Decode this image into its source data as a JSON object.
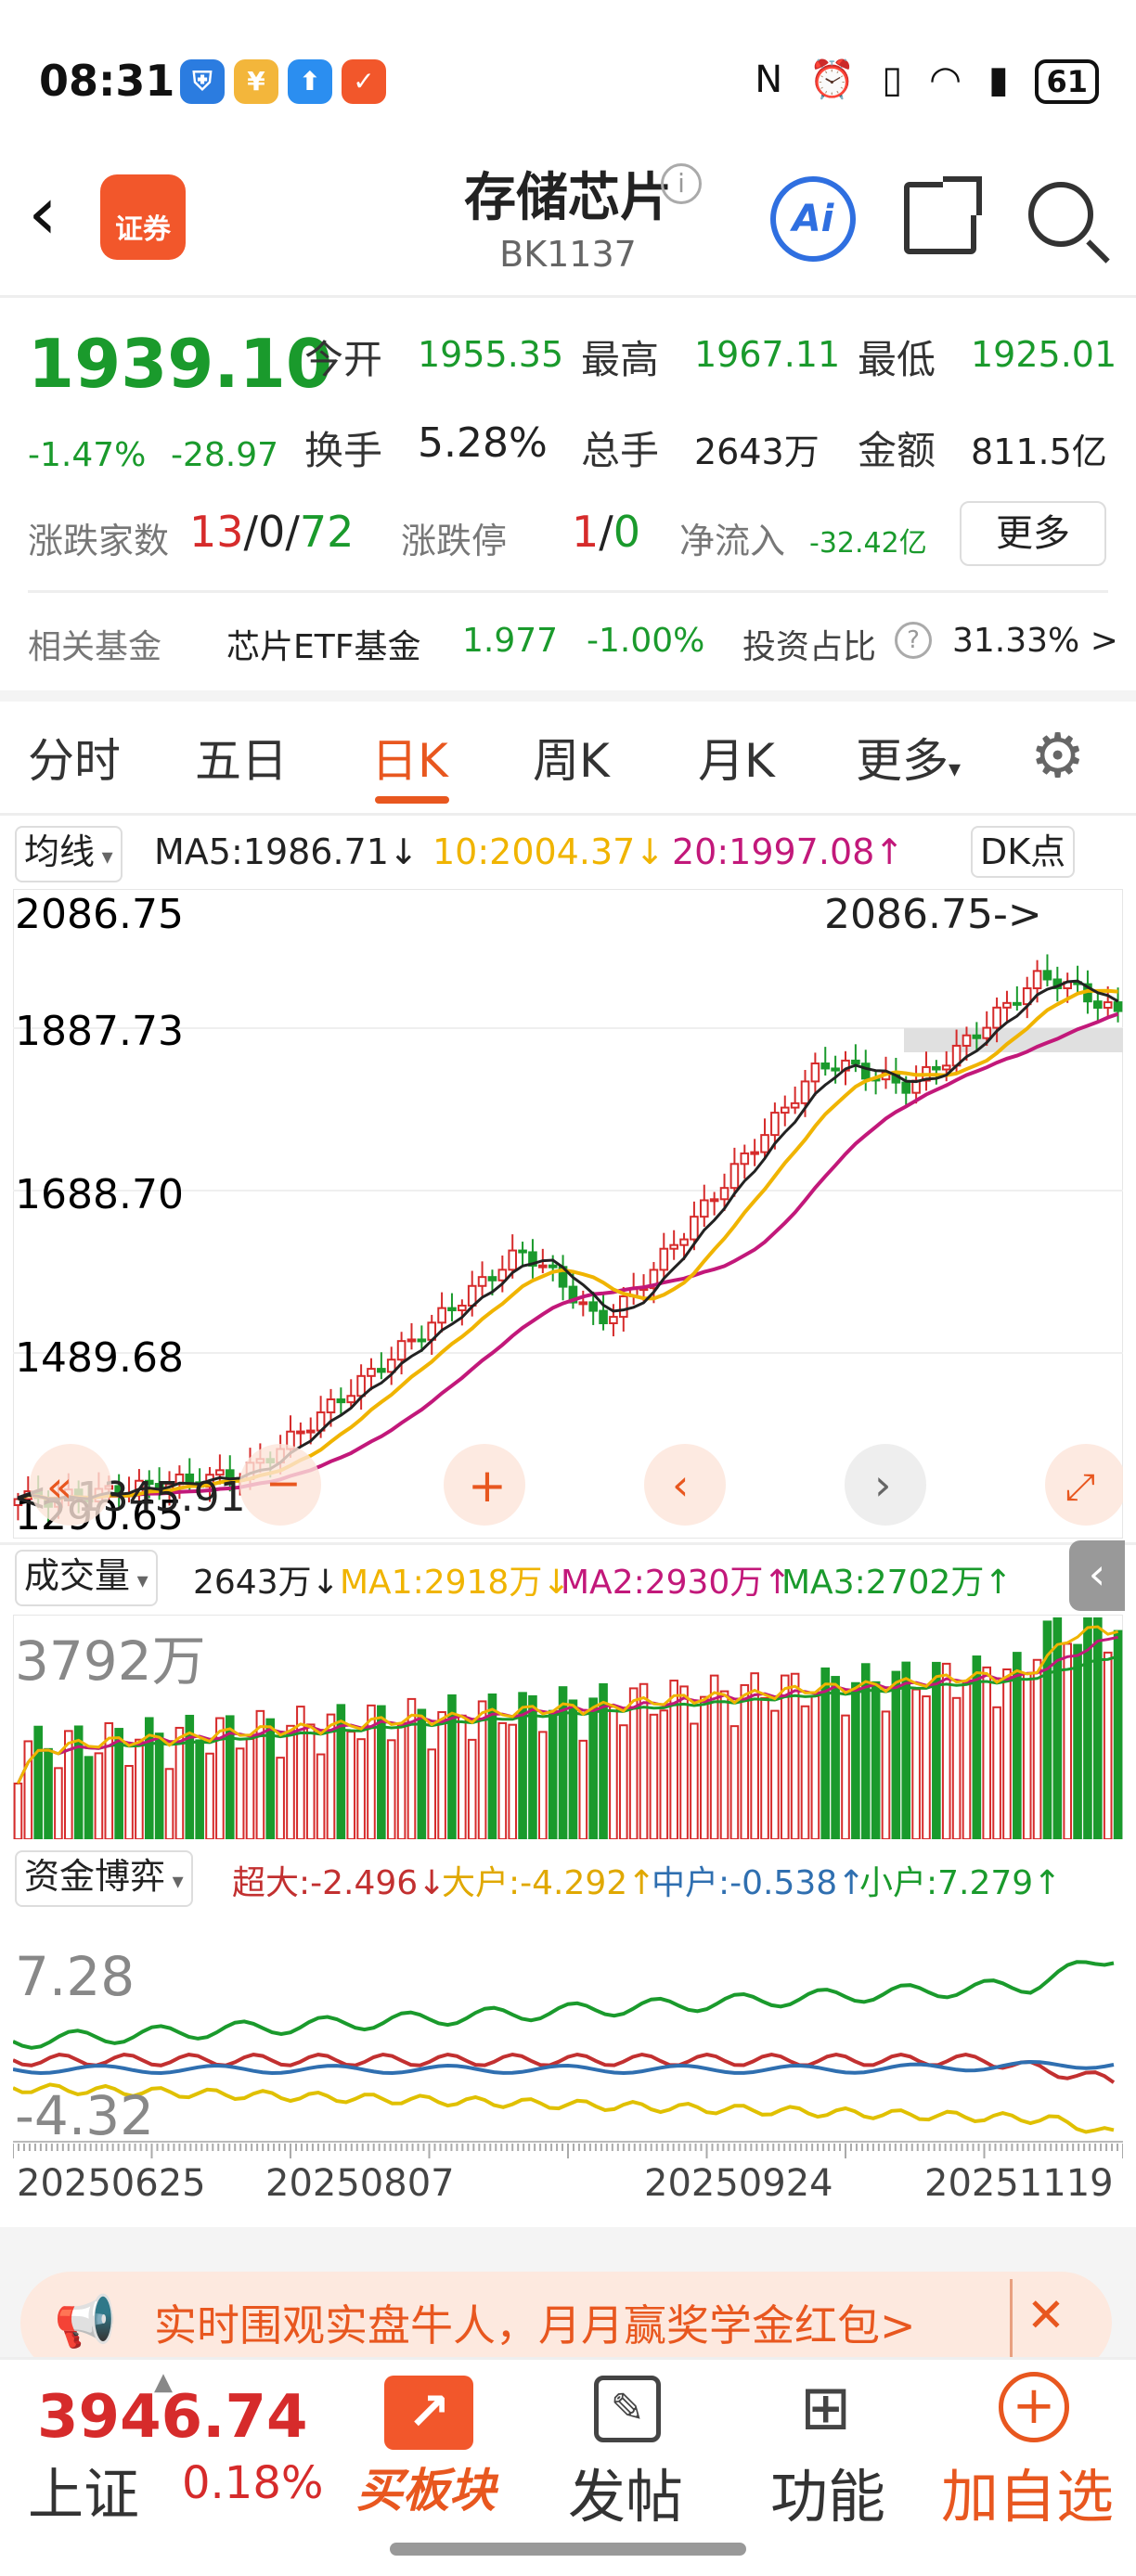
{
  "status_bar": {
    "time": "08:31",
    "battery": "61",
    "app_icons": [
      "shield-icon",
      "bank-icon",
      "upload-icon",
      "securities-app-icon"
    ],
    "system_icons": [
      "nfc-icon",
      "alarm-icon",
      "vibrate-icon",
      "wifi-icon",
      "signal-icon"
    ]
  },
  "header": {
    "back_icon": "‹",
    "logo_label": "证券",
    "title": "存储芯片",
    "code": "BK1137",
    "ai_label": "Ai"
  },
  "quote": {
    "price": "1939.10",
    "change_pct": "-1.47%",
    "change": "-28.97",
    "open_label": "今开",
    "open": "1955.35",
    "high_label": "最高",
    "high": "1967.11",
    "low_label": "最低",
    "low": "1925.01",
    "turnover_label": "换手",
    "turnover": "5.28%",
    "volume_label": "总手",
    "volume": "2643万",
    "amount_label": "金额",
    "amount": "811.5亿",
    "advdec_label": "涨跌家数",
    "adv": "13",
    "sep1": "/",
    "flat": "0",
    "sep2": "/",
    "dec": "72",
    "limit_label": "涨跌停",
    "limit_up": "1",
    "limit_sep": "/",
    "limit_down": "0",
    "netflow_label": "净流入",
    "netflow": "-32.42亿",
    "more_label": "更多"
  },
  "fund": {
    "label": "相关基金",
    "name": "芯片ETF基金",
    "price": "1.977",
    "change": "-1.00%",
    "ratio_label": "投资占比",
    "ratio": "31.33% >"
  },
  "tabs": [
    "分时",
    "五日",
    "日K",
    "周K",
    "月K",
    "更多"
  ],
  "ma_row": {
    "selector": "均线",
    "ma5": "MA5:1986.71↓",
    "ma10": "10:2004.37↓",
    "ma20": "20:1997.08↑",
    "dk": "DK点"
  },
  "kline": {
    "y_labels": [
      "2086.75",
      "1887.73",
      "1688.70",
      "1489.68",
      "1290.65"
    ],
    "max_annot": "2086.75->",
    "min_annot": "<--1345.91"
  },
  "volume": {
    "selector": "成交量",
    "cur": "2643万↓",
    "ma1": "MA1:2918万↓",
    "ma2": "MA2:2930万↑",
    "ma3": "MA3:2702万↑",
    "y_label": "3792万"
  },
  "money": {
    "selector": "资金博弈",
    "super": "超大:-2.496↓",
    "large": "大户:-4.292↑",
    "mid": "中户:-0.538↑",
    "small": "小户:7.279↑",
    "y_top": "7.28",
    "y_bottom": "-4.32"
  },
  "x_dates": [
    "20250625",
    "20250807",
    "20250924",
    "20251119"
  ],
  "banner": {
    "text": "实时围观实盘牛人，月月赢奖学金红包>",
    "close": "✕"
  },
  "bottom": {
    "index_value": "3946.74",
    "index_name": "上证",
    "index_change": "0.18%",
    "buy_label": "买板块",
    "post_label": "发帖",
    "func_label": "功能",
    "add_label": "加自选"
  },
  "colors": {
    "up": "#d62b2b",
    "down": "#1a9a2c",
    "accent": "#e8571f",
    "ma5": "#222222",
    "ma10": "#f0b400",
    "ma20": "#c2187a"
  }
}
